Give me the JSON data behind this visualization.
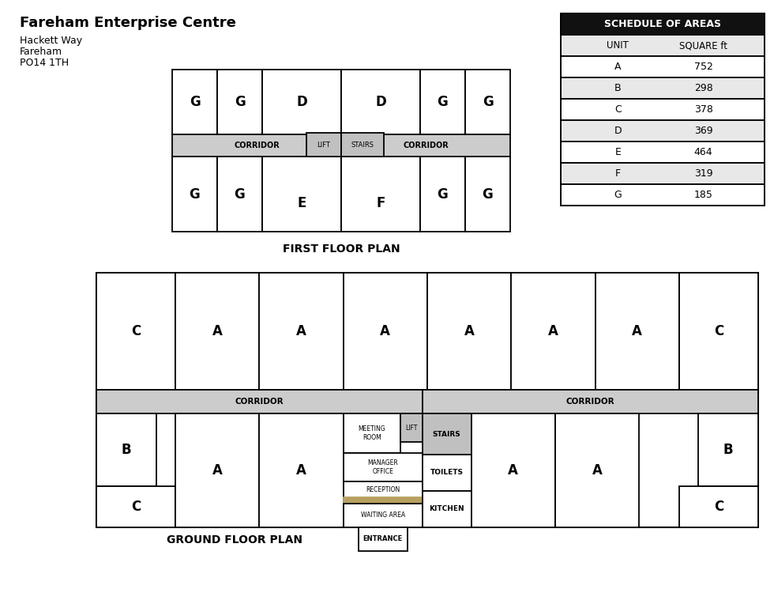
{
  "title": "Fareham Enterprise Centre",
  "address_line1": "Hackett Way",
  "address_line2": "Fareham",
  "address_line3": "PO14 1TH",
  "bg_color": "#ffffff",
  "corridor_fill": "#cccccc",
  "lift_stairs_fill": "#c0c0c0",
  "reception_fill": "#b8a060",
  "table_header_fill": "#111111",
  "table_header_text": "#ffffff",
  "table_row_fills": [
    "#ffffff",
    "#e8e8e8"
  ],
  "schedule_units": [
    "A",
    "B",
    "C",
    "D",
    "E",
    "F",
    "G"
  ],
  "schedule_sqft": [
    752,
    298,
    378,
    369,
    464,
    319,
    185
  ],
  "first_floor_label": "FIRST FLOOR PLAN",
  "ground_floor_label": "GROUND FLOOR PLAN"
}
